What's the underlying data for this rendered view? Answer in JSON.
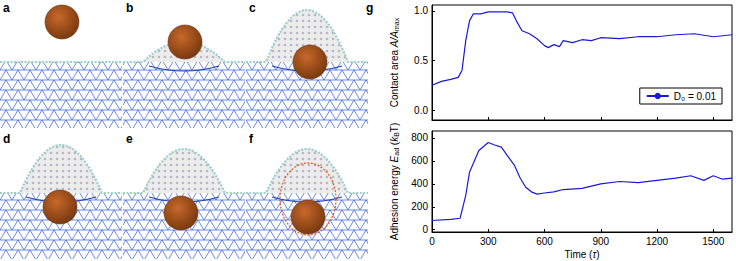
{
  "panel_labels": [
    "a",
    "b",
    "c",
    "d",
    "e",
    "f"
  ],
  "chart_label": "g",
  "chart_data": [
    {
      "type": "line",
      "ylabel": [
        {
          "text": "Contact area "
        },
        {
          "text": "A/A",
          "italic": true
        },
        {
          "text": "max",
          "sub": true
        }
      ],
      "x": [
        0,
        50,
        100,
        140,
        160,
        180,
        200,
        220,
        260,
        300,
        350,
        400,
        430,
        450,
        480,
        520,
        560,
        600,
        620,
        650,
        680,
        700,
        750,
        800,
        850,
        900,
        1000,
        1100,
        1200,
        1300,
        1400,
        1500,
        1600
      ],
      "series": [
        {
          "name": "D₀ = 0.01",
          "color": "#1a1ad6",
          "values": [
            0.25,
            0.29,
            0.31,
            0.33,
            0.4,
            0.7,
            0.9,
            0.97,
            0.97,
            0.99,
            0.99,
            0.99,
            0.98,
            0.9,
            0.8,
            0.77,
            0.72,
            0.65,
            0.63,
            0.66,
            0.64,
            0.7,
            0.68,
            0.71,
            0.7,
            0.73,
            0.72,
            0.74,
            0.74,
            0.76,
            0.77,
            0.74,
            0.76
          ]
        }
      ],
      "xlim": [
        0,
        1600
      ],
      "xticks": [
        0,
        300,
        600,
        900,
        1200,
        1500
      ],
      "ylim": [
        -0.1,
        1.06
      ],
      "yticks": [
        {
          "value": 0,
          "label": "0.0"
        },
        {
          "value": 0.5,
          "label": "0.5"
        },
        {
          "value": 1,
          "label": "1.0"
        }
      ],
      "legend": "lower right",
      "tick_labels": "y"
    },
    {
      "type": "line",
      "xlabel": [
        {
          "text": "Time ("
        },
        {
          "text": "τ",
          "italic": true
        },
        {
          "text": ")"
        }
      ],
      "ylabel": [
        {
          "text": "Adhesion energy "
        },
        {
          "text": "E",
          "italic": true
        },
        {
          "text": "ad",
          "sub": true
        },
        {
          "text": " ("
        },
        {
          "text": "k",
          "italic": true
        },
        {
          "text": "B",
          "sub": true
        },
        {
          "text": "T)"
        }
      ],
      "x": [
        0,
        100,
        150,
        180,
        200,
        250,
        300,
        330,
        370,
        400,
        440,
        470,
        500,
        530,
        560,
        600,
        650,
        700,
        800,
        900,
        1000,
        1100,
        1200,
        1300,
        1380,
        1450,
        1500,
        1550,
        1600
      ],
      "series": [
        {
          "name": "Adhesion energy",
          "color": "#1a1ad6",
          "values": [
            80,
            90,
            100,
            300,
            500,
            690,
            760,
            740,
            720,
            650,
            560,
            450,
            370,
            330,
            310,
            320,
            330,
            350,
            360,
            400,
            420,
            410,
            430,
            450,
            470,
            430,
            470,
            440,
            450
          ]
        }
      ],
      "xlim": [
        0,
        1600
      ],
      "xticks": [
        0,
        300,
        600,
        900,
        1200,
        1500
      ],
      "ylim": [
        -20,
        860
      ],
      "yticks": [
        0,
        200,
        400,
        600,
        800
      ]
    }
  ]
}
